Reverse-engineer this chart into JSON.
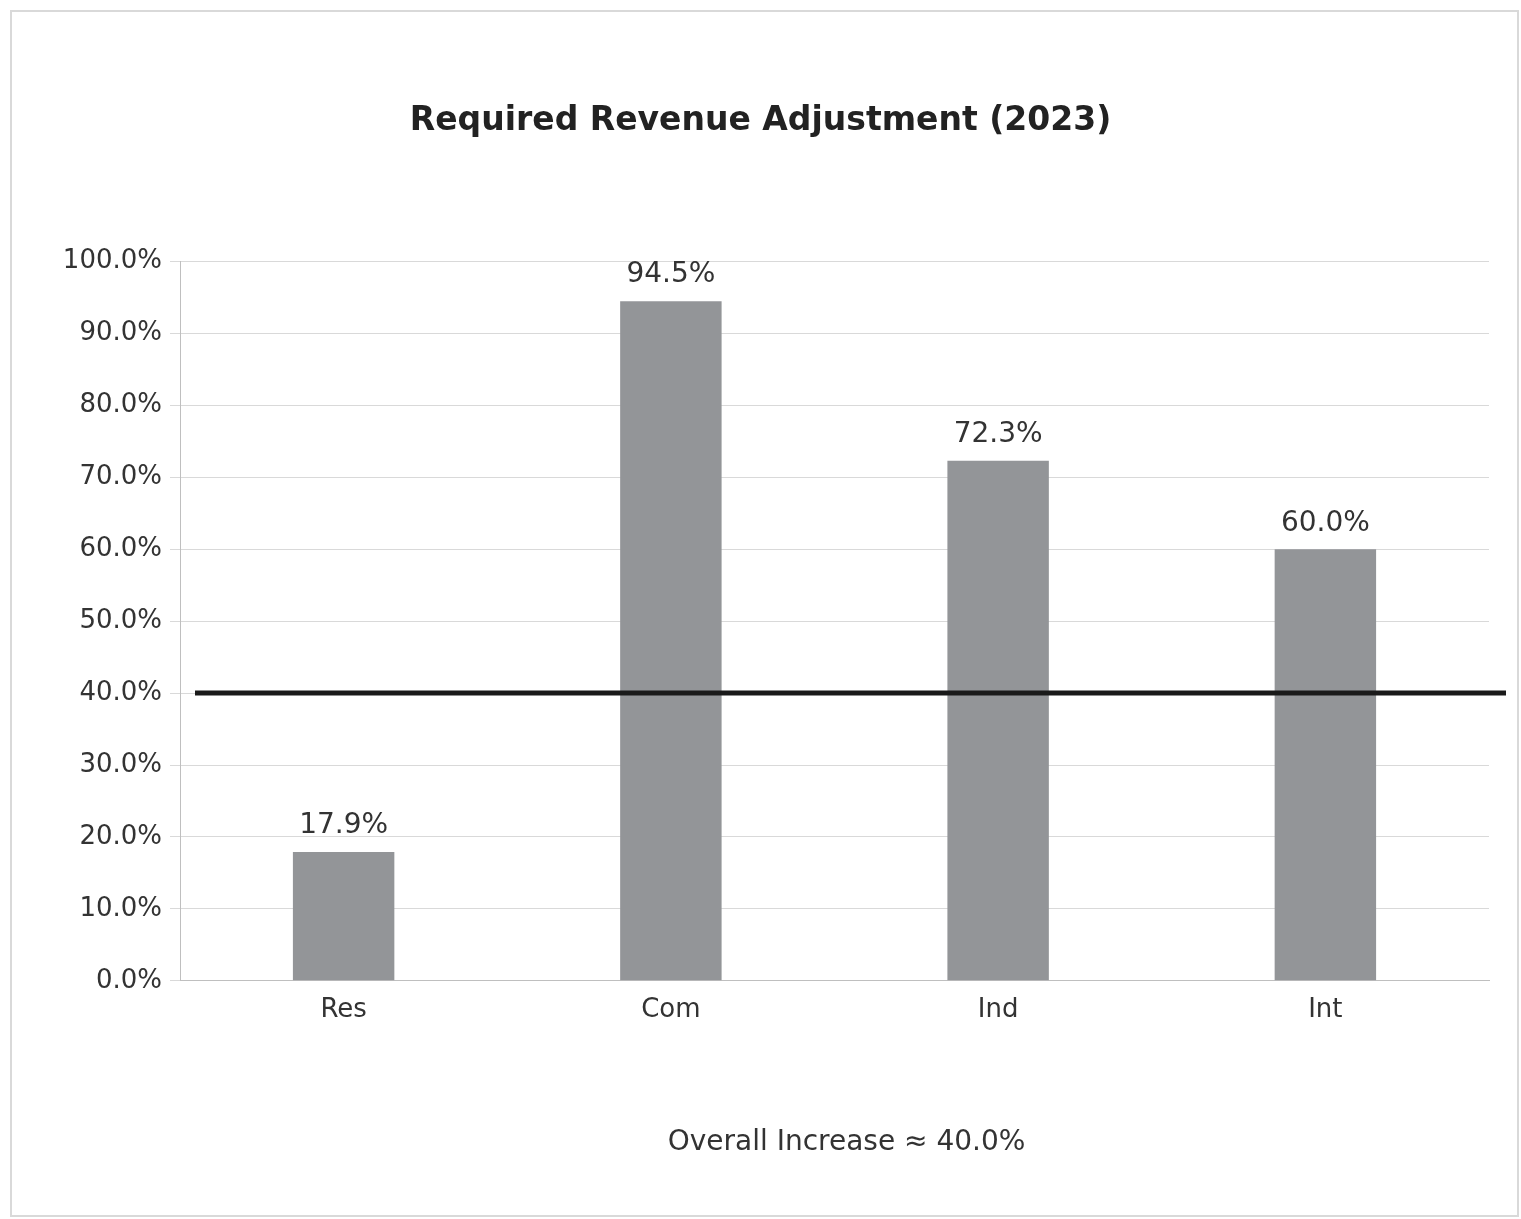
{
  "chart_data": {
    "type": "bar",
    "title": "Required Revenue Adjustment (2023)",
    "categories": [
      "Res",
      "Com",
      "Ind",
      "Int"
    ],
    "values": [
      17.9,
      94.5,
      72.3,
      60.0
    ],
    "value_labels": [
      "17.9%",
      "94.5%",
      "72.3%",
      "60.0%"
    ],
    "color": "#939598",
    "ylim": [
      0,
      100
    ],
    "yticks": [
      {
        "value": 0,
        "label": "0.0%"
      },
      {
        "value": 10,
        "label": "10.0%"
      },
      {
        "value": 20,
        "label": "20.0%"
      },
      {
        "value": 30,
        "label": "30.0%"
      },
      {
        "value": 40,
        "label": "40.0%"
      },
      {
        "value": 50,
        "label": "50.0%"
      },
      {
        "value": 60,
        "label": "60.0%"
      },
      {
        "value": 70,
        "label": "70.0%"
      },
      {
        "value": 80,
        "label": "80.0%"
      },
      {
        "value": 90,
        "label": "90.0%"
      },
      {
        "value": 100,
        "label": "100.0%"
      }
    ],
    "grid": "y",
    "ref_lines": [
      {
        "axis": "y",
        "value": 40,
        "color": "#1a1a1a"
      }
    ],
    "annotations": [
      "Overall Increase ≈ 40.0%"
    ]
  }
}
